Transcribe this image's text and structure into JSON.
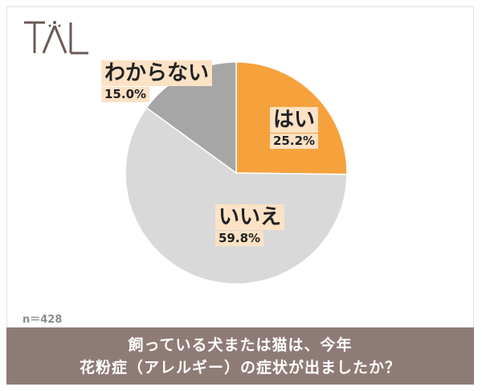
{
  "logo": {
    "text": "TAL"
  },
  "sample_size": "n＝428",
  "question": {
    "line1": "飼っている犬または猫は、今年",
    "line2": "花粉症（アレルギー）の症状が出ましたか？"
  },
  "chart_data": {
    "type": "pie",
    "title": "",
    "slices": [
      {
        "label": "はい",
        "value": 25.2,
        "display": "25.2%",
        "color": "#f5a23c"
      },
      {
        "label": "いいえ",
        "value": 59.8,
        "display": "59.8%",
        "color": "#d9d9d9"
      },
      {
        "label": "わからない",
        "value": 15.0,
        "display": "15.0%",
        "color": "#a6a6a6"
      }
    ],
    "start": "12 o'clock",
    "direction": "clockwise"
  },
  "colors": {
    "footer_bg": "#8f7b76",
    "label_bg": "#fde2c5"
  }
}
